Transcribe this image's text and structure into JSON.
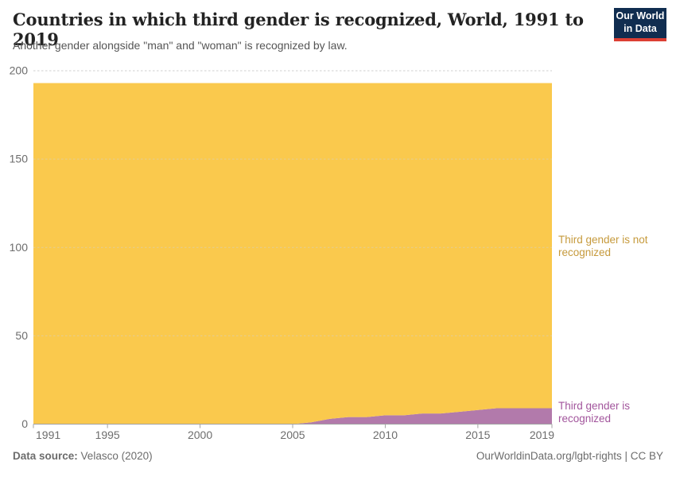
{
  "header": {
    "title": "Countries in which third gender is recognized, World, 1991 to 2019",
    "subtitle": "Another gender alongside \"man\" and \"woman\" is recognized by law."
  },
  "logo": {
    "line1": "Our World",
    "line2": "in Data",
    "bg_color": "#102d50",
    "bar_color": "#dc3f34"
  },
  "chart_data": {
    "type": "area",
    "stacked": true,
    "title": "Countries in which third gender is recognized, World, 1991 to 2019",
    "x": [
      1991,
      1992,
      1993,
      1994,
      1995,
      1996,
      1997,
      1998,
      1999,
      2000,
      2001,
      2002,
      2003,
      2004,
      2005,
      2006,
      2007,
      2008,
      2009,
      2010,
      2011,
      2012,
      2013,
      2014,
      2015,
      2016,
      2017,
      2018,
      2019
    ],
    "series": [
      {
        "name": "Third gender is recognized",
        "label_lines": [
          "Third gender is",
          "recognized"
        ],
        "color": "#b27aab",
        "label_color": "#a2559c",
        "values": [
          0,
          0,
          0,
          0,
          0,
          0,
          0,
          0,
          0,
          0,
          0,
          0,
          0,
          0,
          0,
          1,
          3,
          4,
          4,
          5,
          5,
          6,
          6,
          7,
          8,
          9,
          9,
          9,
          9
        ]
      },
      {
        "name": "Third gender is not recognized",
        "label_lines": [
          "Third gender is not",
          "recognized"
        ],
        "color": "#fac94d",
        "label_color": "#c69a3c",
        "values": [
          193,
          193,
          193,
          193,
          193,
          193,
          193,
          193,
          193,
          193,
          193,
          193,
          193,
          193,
          193,
          192,
          190,
          189,
          189,
          188,
          188,
          187,
          187,
          186,
          185,
          184,
          184,
          184,
          184
        ]
      }
    ],
    "total_countries": 193,
    "ylim": [
      0,
      200
    ],
    "yticks": [
      0,
      50,
      100,
      150,
      200
    ],
    "xticks": [
      1991,
      1995,
      2000,
      2005,
      2010,
      2015,
      2019
    ],
    "grid": "dashed-horizontal",
    "legend_position": "right-edge-labels",
    "axis_color": "#a3a3a3",
    "tick_label_color": "#6d6d6d",
    "gridline_color": "#cfcfcf"
  },
  "footer": {
    "data_source_label": "Data source:",
    "data_source_value": "Velasco (2020)",
    "credit": "OurWorldinData.org/lgbt-rights | CC BY"
  }
}
